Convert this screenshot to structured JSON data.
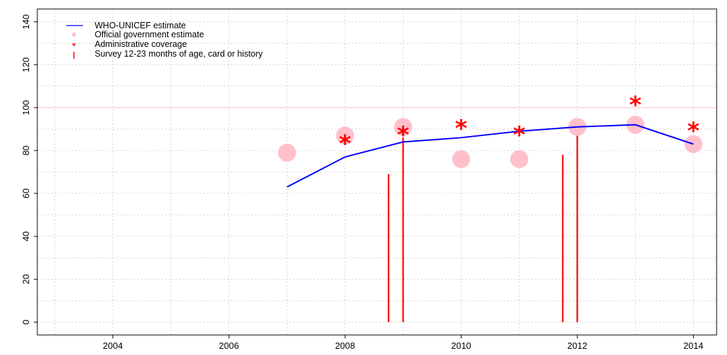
{
  "chart_data": {
    "type": "line",
    "title": "",
    "xlabel": "",
    "ylabel": "",
    "xlim": [
      2002.7,
      2014.4
    ],
    "ylim": [
      -6,
      146
    ],
    "x_ticks": [
      2004,
      2006,
      2008,
      2010,
      2012,
      2014
    ],
    "y_ticks": [
      0,
      20,
      40,
      60,
      80,
      100,
      120,
      140
    ],
    "grid": true,
    "reference_line": {
      "y": 100,
      "color": "#ffc0cb"
    },
    "legend": {
      "position": "top-left",
      "entries": [
        {
          "label": "WHO-UNICEF estimate",
          "symbol": "line",
          "color": "#0000ff"
        },
        {
          "label": "Official government estimate",
          "symbol": "circle",
          "color": "#ffc0cb"
        },
        {
          "label": "Administrative coverage",
          "symbol": "star",
          "color": "#ff0000"
        },
        {
          "label": "Survey 12-23 months of age, card or history",
          "symbol": "bar",
          "color": "#ff0000"
        }
      ]
    },
    "series": [
      {
        "name": "WHO-UNICEF estimate",
        "kind": "line",
        "color": "#0000ff",
        "x": [
          2007,
          2008,
          2009,
          2010,
          2011,
          2012,
          2013,
          2014
        ],
        "y": [
          63,
          77,
          84,
          86,
          89,
          91,
          92,
          83
        ]
      },
      {
        "name": "Official government estimate",
        "kind": "circle",
        "color": "#ffc0cb",
        "x": [
          2007,
          2008,
          2009,
          2010,
          2011,
          2012,
          2013,
          2014
        ],
        "y": [
          79,
          87,
          91,
          76,
          76,
          91,
          92,
          83
        ]
      },
      {
        "name": "Administrative coverage",
        "kind": "star",
        "color": "#ff0000",
        "x": [
          2008,
          2009,
          2010,
          2011,
          2013,
          2014
        ],
        "y": [
          85,
          89,
          92,
          89,
          103,
          91
        ]
      },
      {
        "name": "Survey 12-23 months of age, card or history",
        "kind": "bar",
        "color": "#ff0000",
        "x": [
          2008.75,
          2009,
          2011.75,
          2012
        ],
        "y": [
          69,
          86,
          78,
          91
        ]
      }
    ]
  }
}
